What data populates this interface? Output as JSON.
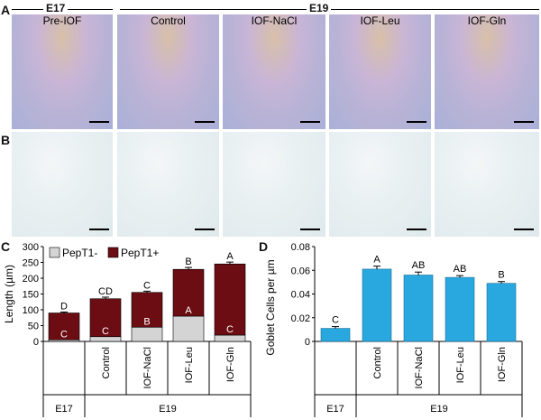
{
  "panels": {
    "A": "A",
    "B": "B",
    "C": "C",
    "D": "D"
  },
  "headers": {
    "e17": "E17",
    "e19": "E19"
  },
  "micrograph_labels": [
    "Pre-IOF",
    "Control",
    "IOF-NaCl",
    "IOF-Leu",
    "IOF-Gln"
  ],
  "colors": {
    "pept_neg": "#d4d4d4",
    "pept_pos": "#6b0d13",
    "goblet": "#29a8e0"
  },
  "chart_data": [
    {
      "type": "bar",
      "stacked": true,
      "categories": [
        "",
        "Control",
        "IOF-NaCl",
        "IOF-Leu",
        "IOF-Gln"
      ],
      "groups": [
        {
          "label": "E17",
          "span": 1
        },
        {
          "label": "E19",
          "span": 4
        }
      ],
      "series": [
        {
          "name": "PepT1-",
          "values": [
            5,
            15,
            45,
            80,
            20
          ],
          "letters": [
            "C",
            "C",
            "B",
            "A",
            "C"
          ]
        },
        {
          "name": "PepT1+",
          "values": [
            85,
            120,
            110,
            148,
            225
          ]
        }
      ],
      "totals": [
        90,
        135,
        155,
        228,
        245
      ],
      "errors": [
        3,
        5,
        4,
        6,
        6
      ],
      "total_letters": [
        "D",
        "CD",
        "C",
        "B",
        "A"
      ],
      "ylabel": "Length (µm)",
      "ylim": [
        0,
        300
      ],
      "yticks": [
        "0",
        "50",
        "100",
        "150",
        "200",
        "250",
        "300"
      ],
      "legend": "top-left"
    },
    {
      "type": "bar",
      "categories": [
        "",
        "Control",
        "IOF-NaCl",
        "IOF-Leu",
        "IOF-Gln"
      ],
      "groups": [
        {
          "label": "E17",
          "span": 1
        },
        {
          "label": "E19",
          "span": 4
        }
      ],
      "values": [
        0.011,
        0.061,
        0.056,
        0.054,
        0.049
      ],
      "errors": [
        0.0015,
        0.0025,
        0.0025,
        0.0015,
        0.0015
      ],
      "letters": [
        "C",
        "A",
        "AB",
        "AB",
        "B"
      ],
      "ylabel": "Goblet Cells per µm",
      "ylim": [
        0,
        0.08
      ],
      "yticks": [
        "0",
        "0.02",
        "0.04",
        "0.06",
        "0.08"
      ]
    }
  ]
}
